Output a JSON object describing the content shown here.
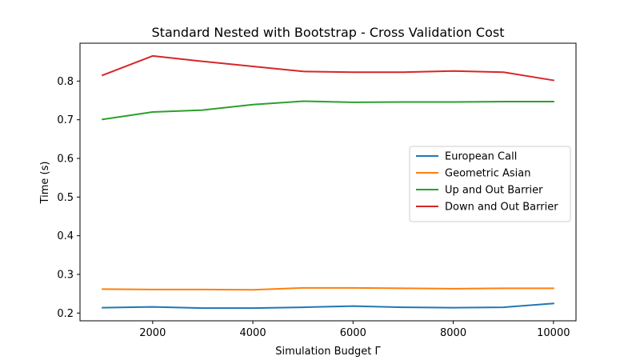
{
  "chart_data": {
    "type": "line",
    "title": "Standard Nested with Bootstrap - Cross Validation Cost",
    "xlabel": "Simulation Budget Γ",
    "ylabel": "Time (s)",
    "xlim": [
      550,
      10450
    ],
    "ylim": [
      0.18,
      0.898
    ],
    "xticks": [
      2000,
      4000,
      6000,
      8000,
      10000
    ],
    "yticks": [
      0.2,
      0.3,
      0.4,
      0.5,
      0.6,
      0.7,
      0.8
    ],
    "x": [
      1000,
      2000,
      3000,
      4000,
      5000,
      6000,
      7000,
      8000,
      9000,
      10000
    ],
    "legend_position": "center-right",
    "grid": false,
    "series": [
      {
        "name": "European Call",
        "color": "#1f77b4",
        "values": [
          0.214,
          0.216,
          0.213,
          0.213,
          0.215,
          0.218,
          0.215,
          0.214,
          0.215,
          0.225
        ]
      },
      {
        "name": "Geometric Asian",
        "color": "#ff7f0e",
        "values": [
          0.262,
          0.261,
          0.261,
          0.26,
          0.265,
          0.265,
          0.264,
          0.263,
          0.264,
          0.264
        ]
      },
      {
        "name": "Up and Out Barrier",
        "color": "#2ca02c",
        "values": [
          0.701,
          0.72,
          0.725,
          0.739,
          0.748,
          0.745,
          0.746,
          0.746,
          0.747,
          0.747
        ]
      },
      {
        "name": "Down and Out Barrier",
        "color": "#d62728",
        "values": [
          0.815,
          0.865,
          0.851,
          0.838,
          0.825,
          0.823,
          0.823,
          0.826,
          0.823,
          0.802
        ]
      }
    ]
  }
}
